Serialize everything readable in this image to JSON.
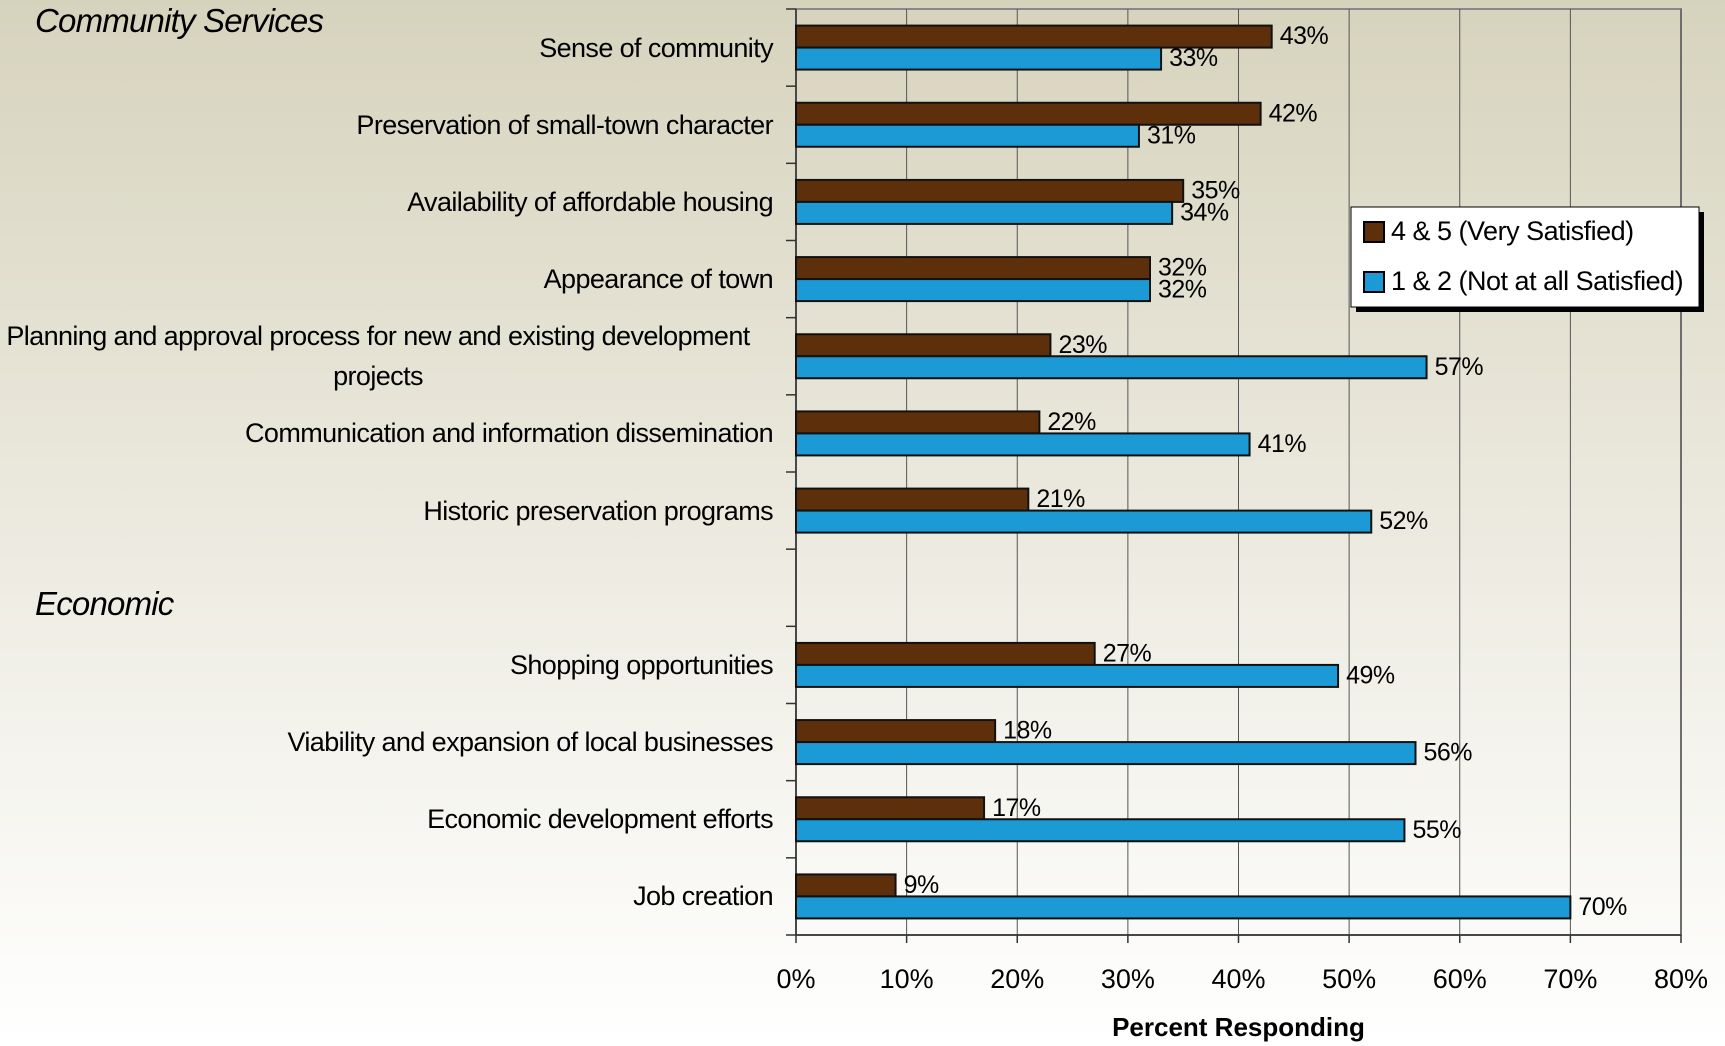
{
  "chart_data": {
    "type": "bar",
    "orientation": "horizontal",
    "annotations": [
      "Community Services",
      "Economic"
    ],
    "categories": [
      "Sense of community",
      "Preservation of small-town character",
      "Availability of affordable housing",
      "Appearance of town",
      "Planning and approval process for new and existing development projects",
      "Communication and information dissemination",
      "Historic preservation programs",
      null,
      "Shopping opportunities",
      "Viability and expansion of local businesses",
      "Economic development efforts",
      "Job creation"
    ],
    "series": [
      {
        "name": "4 & 5 (Very Satisfied)",
        "color": "#5e2f0b",
        "values": [
          43,
          42,
          35,
          32,
          23,
          22,
          21,
          null,
          27,
          18,
          17,
          9
        ],
        "value_labels": [
          "43%",
          "42%",
          "35%",
          "32%",
          "23%",
          "22%",
          "21%",
          null,
          "27%",
          "18%",
          "17%",
          "9%"
        ]
      },
      {
        "name": "1 & 2 (Not at all Satisfied)",
        "color": "#1b9ad6",
        "values": [
          33,
          31,
          34,
          32,
          57,
          41,
          52,
          null,
          49,
          56,
          55,
          70
        ],
        "value_labels": [
          "33%",
          "31%",
          "34%",
          "32%",
          "57%",
          "41%",
          "52%",
          null,
          "49%",
          "56%",
          "55%",
          "70%"
        ]
      }
    ],
    "xlim": [
      0,
      80
    ],
    "xticks": [
      {
        "value": 0,
        "label": "0%"
      },
      {
        "value": 10,
        "label": "10%"
      },
      {
        "value": 20,
        "label": "20%"
      },
      {
        "value": 30,
        "label": "30%"
      },
      {
        "value": 40,
        "label": "40%"
      },
      {
        "value": 50,
        "label": "50%"
      },
      {
        "value": 60,
        "label": "60%"
      },
      {
        "value": 70,
        "label": "70%"
      },
      {
        "value": 80,
        "label": "80%"
      }
    ],
    "xlabel": "Percent Responding",
    "grid": true,
    "legend": "right"
  }
}
